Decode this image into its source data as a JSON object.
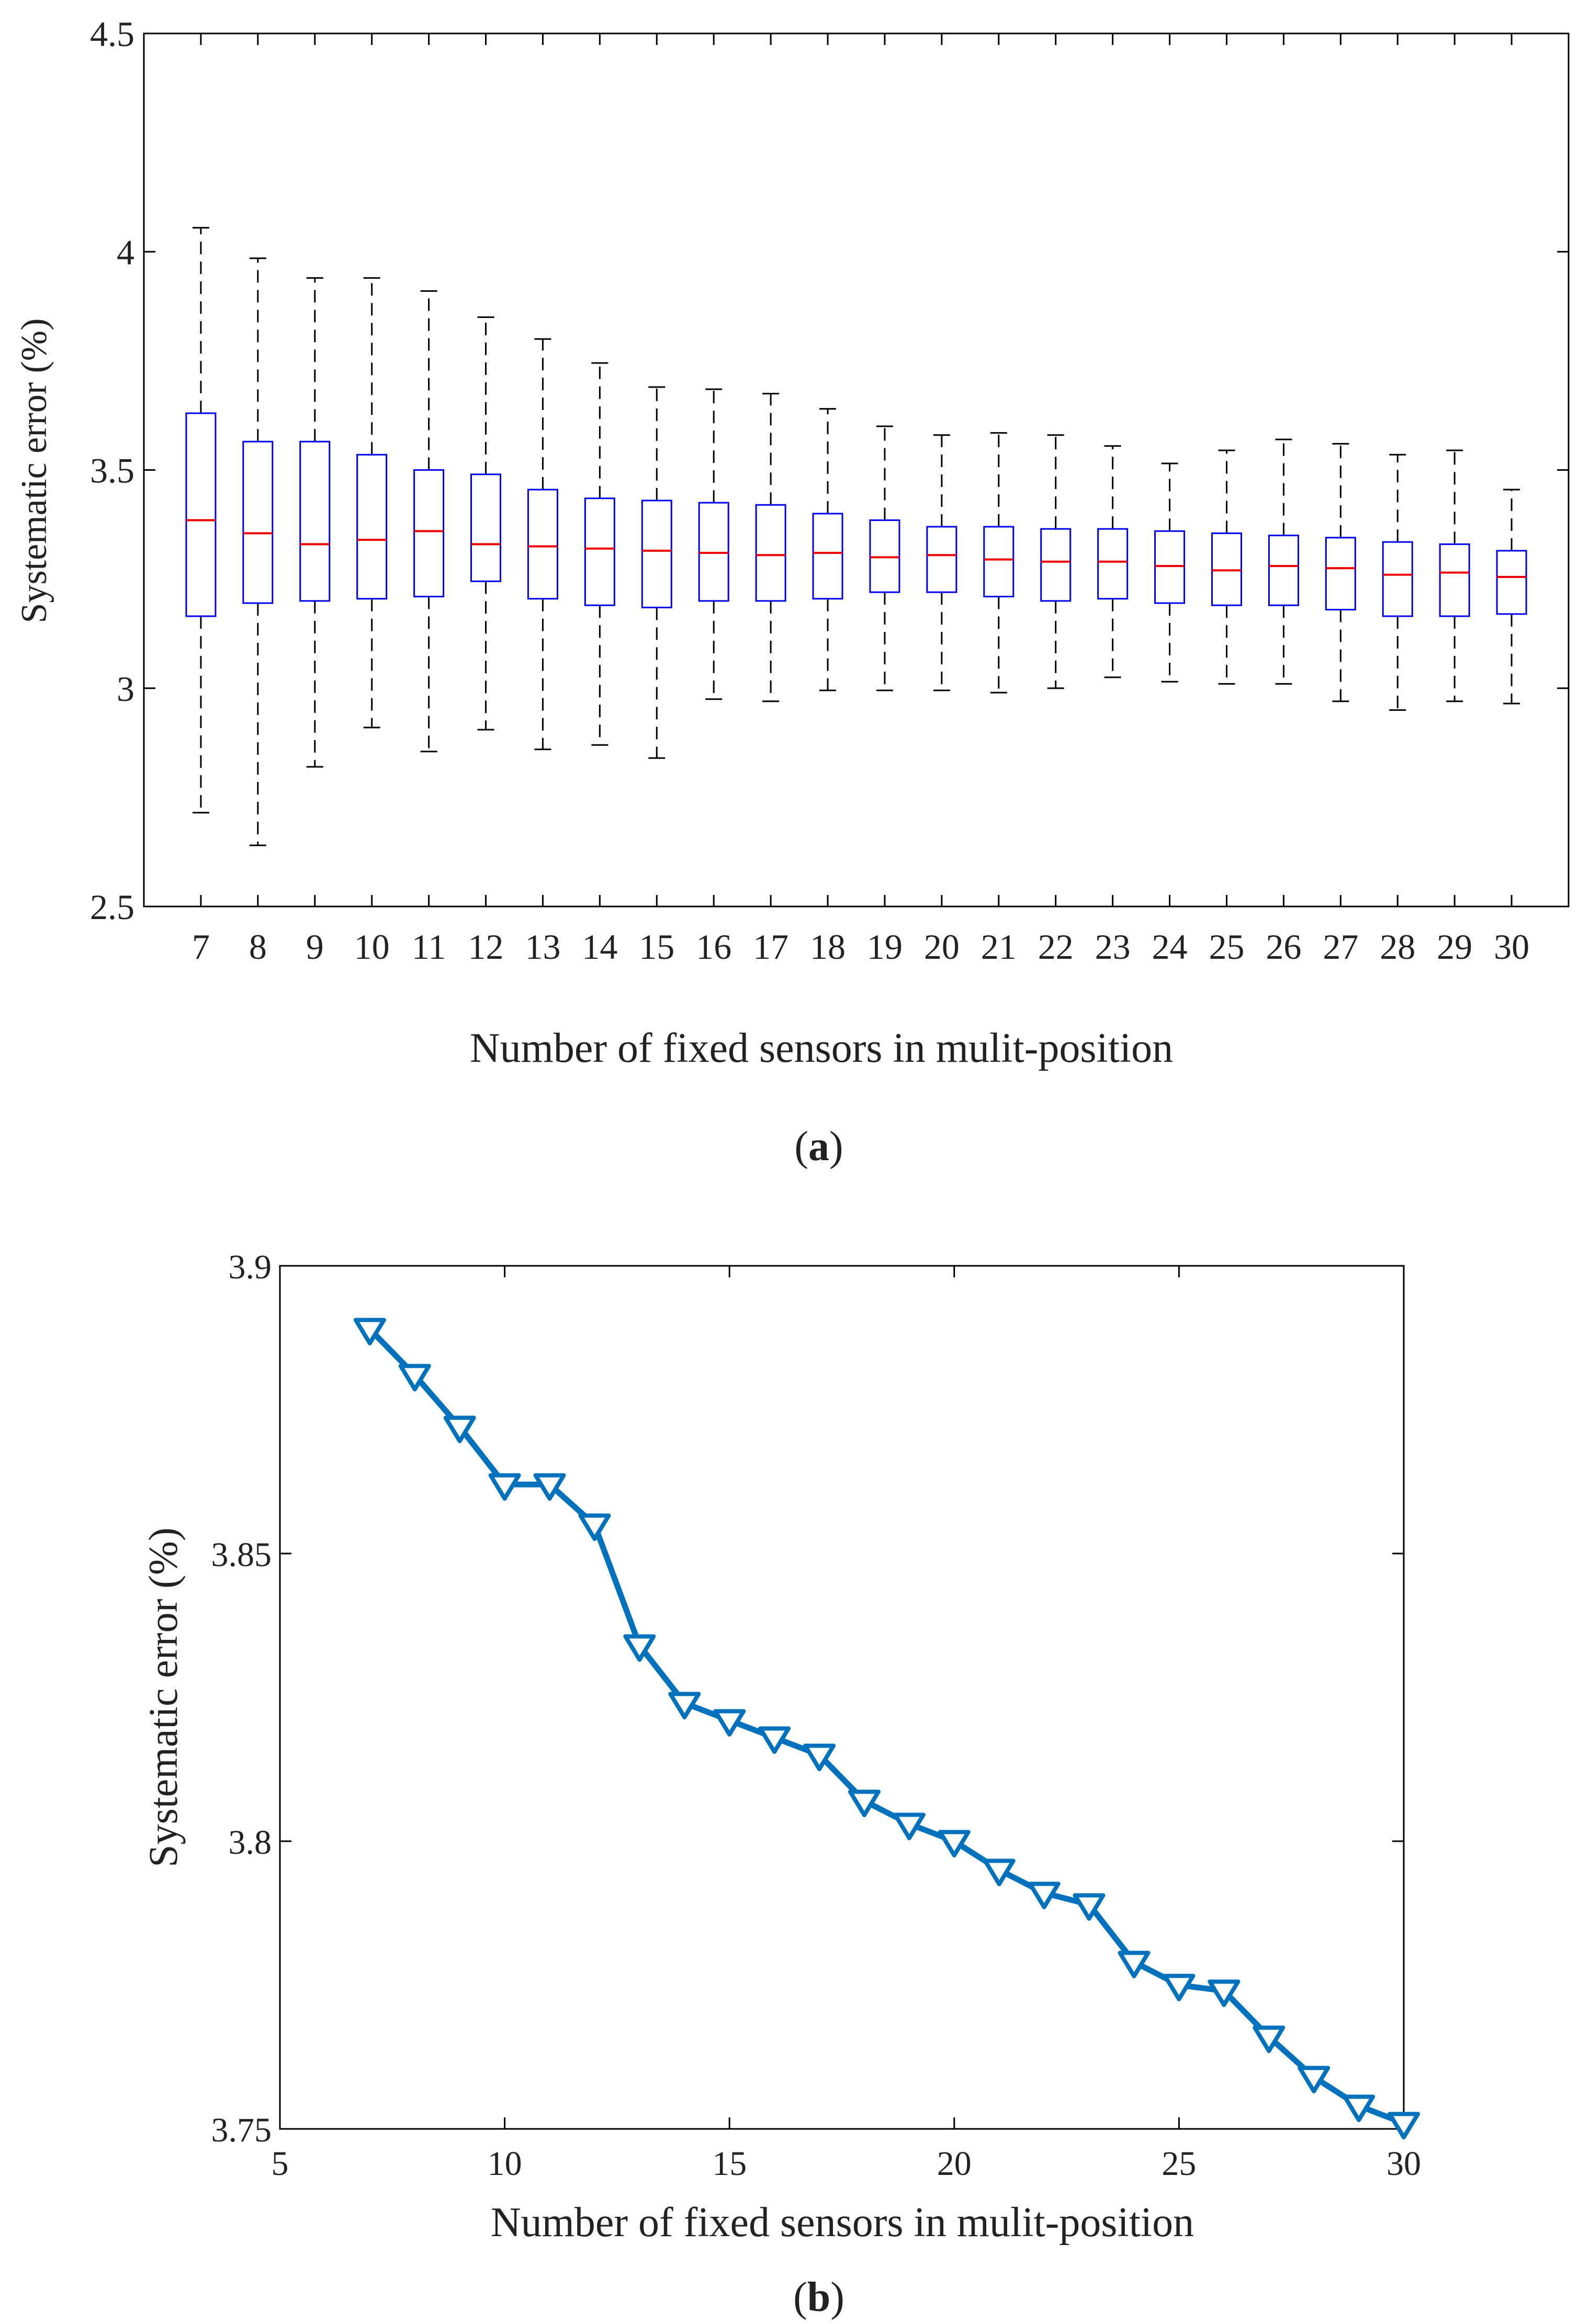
{
  "chart_data": [
    {
      "type": "box",
      "panel_label": "a",
      "xlabel": "Number of fixed sensors in mulit-position",
      "ylabel": "Systematic error (%)",
      "ylim": [
        2.5,
        4.5
      ],
      "yticks": [
        "2.5",
        "3",
        "3.5",
        "4",
        "4.5"
      ],
      "categories": [
        "7",
        "8",
        "9",
        "10",
        "11",
        "12",
        "13",
        "14",
        "15",
        "16",
        "17",
        "18",
        "19",
        "20",
        "21",
        "22",
        "23",
        "24",
        "25",
        "26",
        "27",
        "28",
        "29",
        "30"
      ],
      "boxes": [
        {
          "min": 2.715,
          "q1": 3.165,
          "median": 3.385,
          "q3": 3.63,
          "max": 4.055
        },
        {
          "min": 2.64,
          "q1": 3.195,
          "median": 3.355,
          "q3": 3.565,
          "max": 3.985
        },
        {
          "min": 2.82,
          "q1": 3.2,
          "median": 3.33,
          "q3": 3.565,
          "max": 3.94
        },
        {
          "min": 2.91,
          "q1": 3.205,
          "median": 3.34,
          "q3": 3.535,
          "max": 3.94
        },
        {
          "min": 2.855,
          "q1": 3.21,
          "median": 3.36,
          "q3": 3.5,
          "max": 3.91
        },
        {
          "min": 2.905,
          "q1": 3.245,
          "median": 3.33,
          "q3": 3.49,
          "max": 3.85
        },
        {
          "min": 2.86,
          "q1": 3.205,
          "median": 3.325,
          "q3": 3.455,
          "max": 3.8
        },
        {
          "min": 2.87,
          "q1": 3.19,
          "median": 3.32,
          "q3": 3.435,
          "max": 3.745
        },
        {
          "min": 2.84,
          "q1": 3.185,
          "median": 3.315,
          "q3": 3.43,
          "max": 3.69
        },
        {
          "min": 2.975,
          "q1": 3.2,
          "median": 3.31,
          "q3": 3.425,
          "max": 3.685
        },
        {
          "min": 2.97,
          "q1": 3.2,
          "median": 3.305,
          "q3": 3.42,
          "max": 3.675
        },
        {
          "min": 2.995,
          "q1": 3.205,
          "median": 3.31,
          "q3": 3.4,
          "max": 3.64
        },
        {
          "min": 2.995,
          "q1": 3.22,
          "median": 3.3,
          "q3": 3.385,
          "max": 3.6
        },
        {
          "min": 2.995,
          "q1": 3.22,
          "median": 3.305,
          "q3": 3.37,
          "max": 3.58
        },
        {
          "min": 2.99,
          "q1": 3.21,
          "median": 3.295,
          "q3": 3.37,
          "max": 3.585
        },
        {
          "min": 3.0,
          "q1": 3.2,
          "median": 3.29,
          "q3": 3.365,
          "max": 3.58
        },
        {
          "min": 3.025,
          "q1": 3.205,
          "median": 3.29,
          "q3": 3.365,
          "max": 3.555
        },
        {
          "min": 3.015,
          "q1": 3.195,
          "median": 3.28,
          "q3": 3.36,
          "max": 3.515
        },
        {
          "min": 3.01,
          "q1": 3.19,
          "median": 3.27,
          "q3": 3.355,
          "max": 3.545
        },
        {
          "min": 3.01,
          "q1": 3.19,
          "median": 3.28,
          "q3": 3.35,
          "max": 3.57
        },
        {
          "min": 2.97,
          "q1": 3.18,
          "median": 3.275,
          "q3": 3.345,
          "max": 3.56
        },
        {
          "min": 2.95,
          "q1": 3.165,
          "median": 3.26,
          "q3": 3.335,
          "max": 3.535
        },
        {
          "min": 2.97,
          "q1": 3.165,
          "median": 3.265,
          "q3": 3.33,
          "max": 3.545
        },
        {
          "min": 2.965,
          "q1": 3.17,
          "median": 3.255,
          "q3": 3.315,
          "max": 3.455
        }
      ],
      "colors": {
        "box": "#0000ee",
        "median": "#ee0000",
        "whisker": "#000000"
      }
    },
    {
      "type": "line",
      "panel_label": "b",
      "xlabel": "Number of fixed sensors in mulit-position",
      "ylabel": "Systematic error (%)",
      "xlim": [
        5,
        30
      ],
      "ylim": [
        3.75,
        3.9
      ],
      "xticks": [
        "5",
        "10",
        "15",
        "20",
        "25",
        "30"
      ],
      "yticks": [
        "3.75",
        "3.8",
        "3.85",
        "3.9"
      ],
      "series": [
        {
          "name": "Systematic error",
          "marker": "triangle-down",
          "color": "#0072bd",
          "x": [
            7,
            8,
            9,
            10,
            11,
            12,
            13,
            14,
            15,
            16,
            17,
            18,
            19,
            20,
            21,
            22,
            23,
            24,
            25,
            26,
            27,
            28,
            29,
            30
          ],
          "y": [
            3.889,
            3.881,
            3.872,
            3.862,
            3.862,
            3.855,
            3.834,
            3.824,
            3.821,
            3.818,
            3.815,
            3.807,
            3.803,
            3.8,
            3.795,
            3.791,
            3.789,
            3.779,
            3.775,
            3.774,
            3.766,
            3.759,
            3.754,
            3.751
          ]
        }
      ]
    }
  ]
}
